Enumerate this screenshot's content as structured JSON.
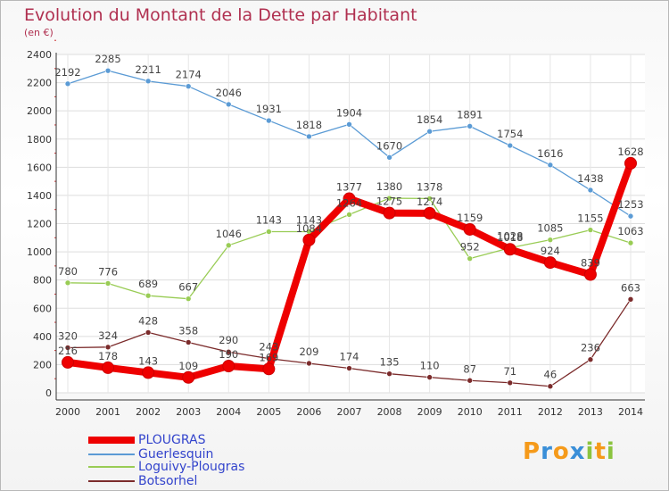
{
  "title": "Evolution du Montant de la Dette par Habitant",
  "subtitle": "(en €)",
  "logo": {
    "text": "Proxiti",
    "letters": [
      "P",
      "r",
      "o",
      "x",
      "i",
      "t",
      "i"
    ],
    "colors": [
      "#f59a1a",
      "#3a8fd8",
      "#f59a1a",
      "#3a8fd8",
      "#8bc43f",
      "#f59a1a",
      "#8bc43f"
    ]
  },
  "chart_data": {
    "type": "line",
    "x": [
      "2000",
      "2001",
      "2002",
      "2003",
      "2004",
      "2005",
      "2006",
      "2007",
      "2008",
      "2009",
      "2010",
      "2011",
      "2012",
      "2013",
      "2014"
    ],
    "ylim": [
      0,
      2400
    ],
    "yticks": [
      0,
      200,
      400,
      600,
      800,
      1000,
      1200,
      1400,
      1600,
      1800,
      2000,
      2200,
      2400
    ],
    "grid": true,
    "legend_position": "bottom-left",
    "series": [
      {
        "name": "PLOUGRAS",
        "color": "#ee0000",
        "values": [
          216,
          178,
          143,
          109,
          190,
          169,
          1084,
          1377,
          1275,
          1274,
          1159,
          1018,
          924,
          839,
          1628
        ],
        "labels": [
          "216",
          "178",
          "143",
          "109",
          "190",
          "169",
          "1084",
          "1377",
          "1275",
          "1274",
          "1159",
          "1018",
          "924",
          "839",
          "1628"
        ]
      },
      {
        "name": "Guerlesquin",
        "color": "#5b9bd5",
        "values": [
          2192,
          2285,
          2211,
          2174,
          2046,
          1931,
          1818,
          1904,
          1670,
          1854,
          1891,
          1754,
          1616,
          1438,
          1253
        ],
        "labels": [
          "2192",
          "2285",
          "2211",
          "2174",
          "2046",
          "1931",
          "1818",
          "1904",
          "1670",
          "1854",
          "1891",
          "1754",
          "1616",
          "1438",
          "1253"
        ]
      },
      {
        "name": "Loguivy-Plougras",
        "color": "#99cc55",
        "values": [
          780,
          776,
          689,
          667,
          1046,
          1143,
          1143,
          1264,
          1380,
          1378,
          952,
          1028,
          1085,
          1155,
          1063
        ],
        "labels": [
          "780",
          "776",
          "689",
          "667",
          "1046",
          "1143",
          "1143",
          "1264",
          "1380",
          "1378",
          "952",
          "1028",
          "1085",
          "1155",
          "1063"
        ]
      },
      {
        "name": "Botsorhel",
        "color": "#7b2b2b",
        "values": [
          320,
          324,
          428,
          358,
          290,
          243,
          209,
          174,
          135,
          110,
          87,
          71,
          46,
          236,
          663
        ],
        "labels": [
          "320",
          "324",
          "428",
          "358",
          "290",
          "243",
          "209",
          "174",
          "135",
          "110",
          "87",
          "71",
          "46",
          "236",
          "663"
        ]
      }
    ]
  }
}
